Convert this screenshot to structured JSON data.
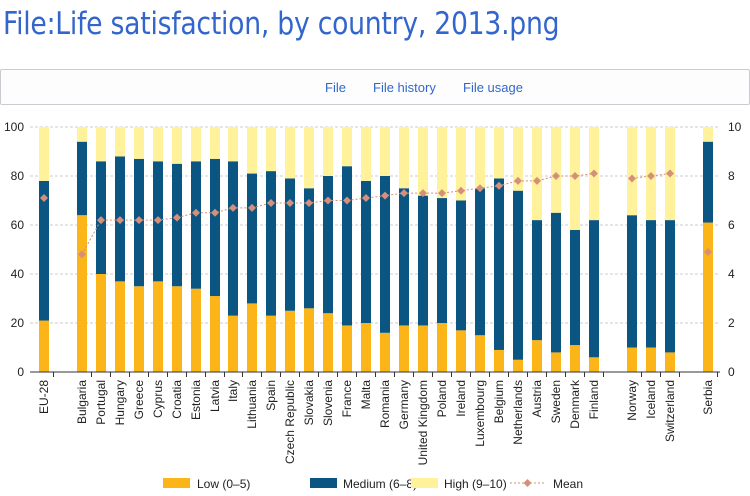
{
  "page": {
    "title": "File:Life satisfaction, by country, 2013.png",
    "tabs": [
      {
        "label": "File"
      },
      {
        "label": "File history"
      },
      {
        "label": "File usage"
      }
    ]
  },
  "chart_data": {
    "type": "bar",
    "stacked": true,
    "categories": [
      "EU-28",
      "Bulgaria",
      "Portugal",
      "Hungary",
      "Greece",
      "Cyprus",
      "Croatia",
      "Estonia",
      "Latvia",
      "Italy",
      "Lithuania",
      "Spain",
      "Czech Republic",
      "Slovakia",
      "Slovenia",
      "France",
      "Malta",
      "Romania",
      "Germany",
      "United Kingdom",
      "Poland",
      "Ireland",
      "Luxembourg",
      "Belgium",
      "Netherlands",
      "Austria",
      "Sweden",
      "Denmark",
      "Finland",
      "Norway",
      "Iceland",
      "Switzerland",
      "Serbia"
    ],
    "series": [
      {
        "name": "Low (0–5)",
        "color": "#fbb519",
        "axis": "left",
        "values": [
          21,
          64,
          40,
          37,
          35,
          37,
          35,
          34,
          31,
          23,
          28,
          23,
          25,
          26,
          24,
          19,
          20,
          16,
          19,
          19,
          20,
          17,
          15,
          9,
          5,
          13,
          8,
          11,
          6,
          10,
          10,
          8,
          61
        ]
      },
      {
        "name": "Medium (6–8)",
        "color": "#0a5581",
        "axis": "left",
        "values": [
          57,
          30,
          46,
          51,
          52,
          49,
          50,
          52,
          56,
          63,
          53,
          59,
          54,
          49,
          56,
          65,
          58,
          64,
          56,
          53,
          51,
          53,
          60,
          70,
          69,
          49,
          57,
          47,
          56,
          54,
          52,
          54,
          33
        ]
      },
      {
        "name": "High (9–10)",
        "color": "#fff29b",
        "axis": "left",
        "values": [
          22,
          6,
          14,
          12,
          13,
          14,
          15,
          14,
          13,
          14,
          19,
          18,
          21,
          25,
          20,
          16,
          22,
          20,
          25,
          28,
          29,
          30,
          25,
          21,
          26,
          38,
          35,
          42,
          38,
          36,
          38,
          38,
          6
        ]
      },
      {
        "name": "Mean",
        "type": "line",
        "color": "#d4907a",
        "axis": "right",
        "values": [
          7.1,
          4.8,
          6.2,
          6.2,
          6.2,
          6.2,
          6.3,
          6.5,
          6.5,
          6.7,
          6.7,
          6.9,
          6.9,
          6.9,
          7.0,
          7.0,
          7.1,
          7.2,
          7.3,
          7.3,
          7.3,
          7.4,
          7.5,
          7.6,
          7.8,
          7.8,
          8.0,
          8.0,
          8.1,
          7.9,
          8.0,
          8.1,
          4.9
        ]
      }
    ],
    "y_left": {
      "range": [
        0,
        100
      ],
      "ticks": [
        "0",
        "20",
        "40",
        "60",
        "80",
        "100"
      ]
    },
    "y_right": {
      "range": [
        0,
        10
      ],
      "ticks": [
        "0",
        "2",
        "4",
        "6",
        "8",
        "10"
      ]
    },
    "grid": true,
    "legend": "bottom",
    "xlabel": "",
    "ylabel": "",
    "title": ""
  }
}
